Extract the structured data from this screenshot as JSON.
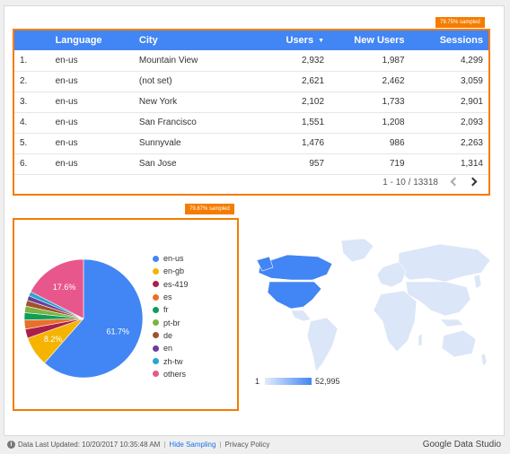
{
  "badges": {
    "table_sampled": "79.75% sampled",
    "pie_sampled": "79.87% sampled"
  },
  "table": {
    "headers": {
      "language": "Language",
      "city": "City",
      "users": "Users",
      "new_users": "New Users",
      "sessions": "Sessions"
    },
    "rows": [
      {
        "idx": "1.",
        "language": "en-us",
        "city": "Mountain View",
        "users": "2,932",
        "new_users": "1,987",
        "sessions": "4,299"
      },
      {
        "idx": "2.",
        "language": "en-us",
        "city": "(not set)",
        "users": "2,621",
        "new_users": "2,462",
        "sessions": "3,059"
      },
      {
        "idx": "3.",
        "language": "en-us",
        "city": "New York",
        "users": "2,102",
        "new_users": "1,733",
        "sessions": "2,901"
      },
      {
        "idx": "4.",
        "language": "en-us",
        "city": "San Francisco",
        "users": "1,551",
        "new_users": "1,208",
        "sessions": "2,093"
      },
      {
        "idx": "5.",
        "language": "en-us",
        "city": "Sunnyvale",
        "users": "1,476",
        "new_users": "986",
        "sessions": "2,263"
      },
      {
        "idx": "6.",
        "language": "en-us",
        "city": "San Jose",
        "users": "957",
        "new_users": "719",
        "sessions": "1,314"
      }
    ],
    "pagination": "1 - 10 / 13318"
  },
  "chart_data": {
    "type": "pie",
    "slices": [
      {
        "label": "en-us",
        "value": 61.7,
        "color": "#4285f4",
        "shown_label": "61.7%"
      },
      {
        "label": "en-gb",
        "value": 8.2,
        "color": "#f4b400",
        "shown_label": "8.2%"
      },
      {
        "label": "es-419",
        "value": 2.5,
        "color": "#ab1f4a",
        "shown_label": ""
      },
      {
        "label": "es",
        "value": 2.5,
        "color": "#e8702a",
        "shown_label": ""
      },
      {
        "label": "fr",
        "value": 2.0,
        "color": "#0f9d58",
        "shown_label": ""
      },
      {
        "label": "pt-br",
        "value": 1.8,
        "color": "#7cb342",
        "shown_label": ""
      },
      {
        "label": "de",
        "value": 1.6,
        "color": "#a0522d",
        "shown_label": ""
      },
      {
        "label": "en",
        "value": 1.3,
        "color": "#6a3d9a",
        "shown_label": ""
      },
      {
        "label": "zh-tw",
        "value": 1.2,
        "color": "#26a6d1",
        "shown_label": ""
      },
      {
        "label": "others",
        "value": 17.6,
        "color": "#e8578b",
        "shown_label": "17.6%"
      }
    ]
  },
  "map": {
    "scale_min": "1",
    "scale_max": "52,995"
  },
  "footer": {
    "updated": "Data Last Updated: 10/20/2017 10:35:48 AM",
    "hide_sampling": "Hide Sampling",
    "privacy": "Privacy Policy",
    "brand": "Google Data Studio"
  }
}
